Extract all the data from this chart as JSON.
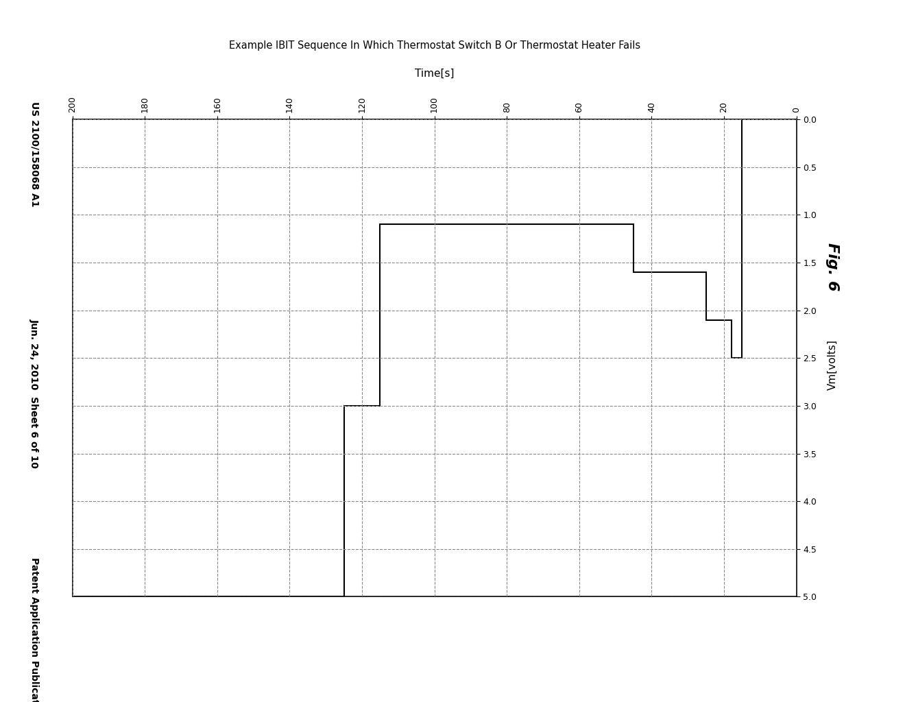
{
  "title": "Example IBIT Sequence In Which Thermostat Switch B Or Thermostat Heater Fails",
  "fig_label": "Fig. 6",
  "header_left": "Patent Application Publication",
  "header_center": "Jun. 24, 2010  Sheet 6 of 10",
  "header_right": "US 2100/158068 A1",
  "time_label": "Time[s]",
  "vm_label": "Vm[volts]",
  "time_ticks": [
    0,
    20,
    40,
    60,
    80,
    100,
    120,
    140,
    160,
    180,
    200
  ],
  "vm_ticks": [
    0,
    0.5,
    1.0,
    1.5,
    2.0,
    2.5,
    3.0,
    3.5,
    4.0,
    4.5,
    5.0
  ],
  "signal_time": [
    0,
    15,
    15,
    18,
    18,
    25,
    25,
    45,
    45,
    115,
    115,
    125,
    125,
    200
  ],
  "signal_vm": [
    0,
    0,
    2.5,
    2.5,
    2.1,
    2.1,
    1.6,
    1.6,
    1.1,
    1.1,
    3.0,
    3.0,
    5.0,
    5.0
  ],
  "line_color": "#000000",
  "line_width": 1.5,
  "grid_color": "#888888",
  "grid_style": "--",
  "grid_linewidth": 0.8,
  "background_color": "#ffffff"
}
